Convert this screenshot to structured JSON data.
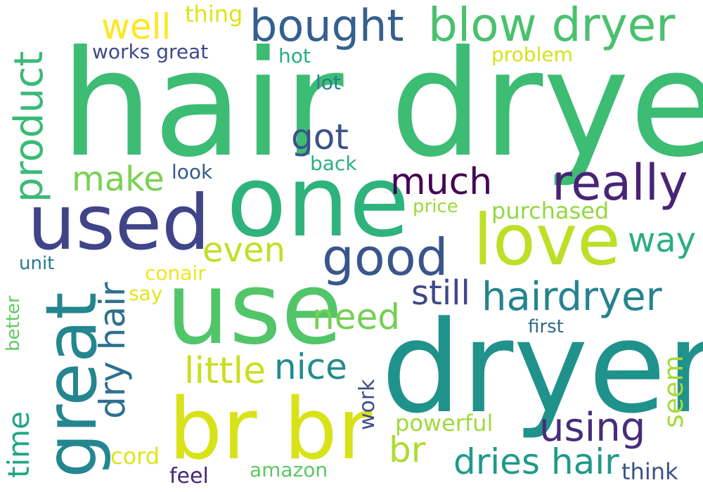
{
  "words": [
    {
      "text": "hair dryer",
      "color": "#3dbc74"
    },
    {
      "text": "dryer",
      "color": "#20928c"
    },
    {
      "text": "one",
      "color": "#2eb37c"
    },
    {
      "text": "use",
      "color": "#52c569"
    },
    {
      "text": "br br",
      "color": "#d8e219"
    },
    {
      "text": "love",
      "color": "#bddf26"
    },
    {
      "text": "used",
      "color": "#404588"
    },
    {
      "text": "great",
      "color": "#24868e"
    },
    {
      "text": "blow dryer",
      "color": "#4ac16d"
    },
    {
      "text": "bought",
      "color": "#35608d"
    },
    {
      "text": "product",
      "color": "#3aba76"
    },
    {
      "text": "really",
      "color": "#482475"
    },
    {
      "text": "good",
      "color": "#39568c"
    },
    {
      "text": "hairdryer",
      "color": "#25848e"
    },
    {
      "text": "using",
      "color": "#472d7b"
    },
    {
      "text": "dry hair",
      "color": "#2d708e"
    },
    {
      "text": "dries hair",
      "color": "#1f9a8a"
    },
    {
      "text": "much",
      "color": "#440154"
    },
    {
      "text": "make",
      "color": "#7ad151"
    },
    {
      "text": "even",
      "color": "#c2df23"
    },
    {
      "text": "need",
      "color": "#73d056"
    },
    {
      "text": "little",
      "color": "#c8e020"
    },
    {
      "text": "nice",
      "color": "#228c8d"
    },
    {
      "text": "still",
      "color": "#3f4889"
    },
    {
      "text": "way",
      "color": "#29af7f"
    },
    {
      "text": "got",
      "color": "#3b528b"
    },
    {
      "text": "well",
      "color": "#fde725"
    },
    {
      "text": "br",
      "color": "#addc30"
    },
    {
      "text": "seem",
      "color": "#a5db36"
    },
    {
      "text": "time",
      "color": "#21a685"
    },
    {
      "text": "works great",
      "color": "#3e4a89"
    },
    {
      "text": "thing",
      "color": "#dde318"
    },
    {
      "text": "hot",
      "color": "#26ad81"
    },
    {
      "text": "problem",
      "color": "#d5e21a"
    },
    {
      "text": "lot",
      "color": "#277f8e"
    },
    {
      "text": "look",
      "color": "#38598c"
    },
    {
      "text": "back",
      "color": "#2ab07f"
    },
    {
      "text": "price",
      "color": "#9dd93b"
    },
    {
      "text": "purchased",
      "color": "#95d840"
    },
    {
      "text": "unit",
      "color": "#2a788e"
    },
    {
      "text": "conair",
      "color": "#f1e51d"
    },
    {
      "text": "say",
      "color": "#e5e419"
    },
    {
      "text": "better",
      "color": "#63cb5f"
    },
    {
      "text": "first",
      "color": "#30698e"
    },
    {
      "text": "work",
      "color": "#3e4c8a"
    },
    {
      "text": "powerful",
      "color": "#a0da39"
    },
    {
      "text": "cord",
      "color": "#e2e418"
    },
    {
      "text": "amazon",
      "color": "#5cc863"
    },
    {
      "text": "feel",
      "color": "#482677"
    },
    {
      "text": "think",
      "color": "#3b518b"
    }
  ]
}
